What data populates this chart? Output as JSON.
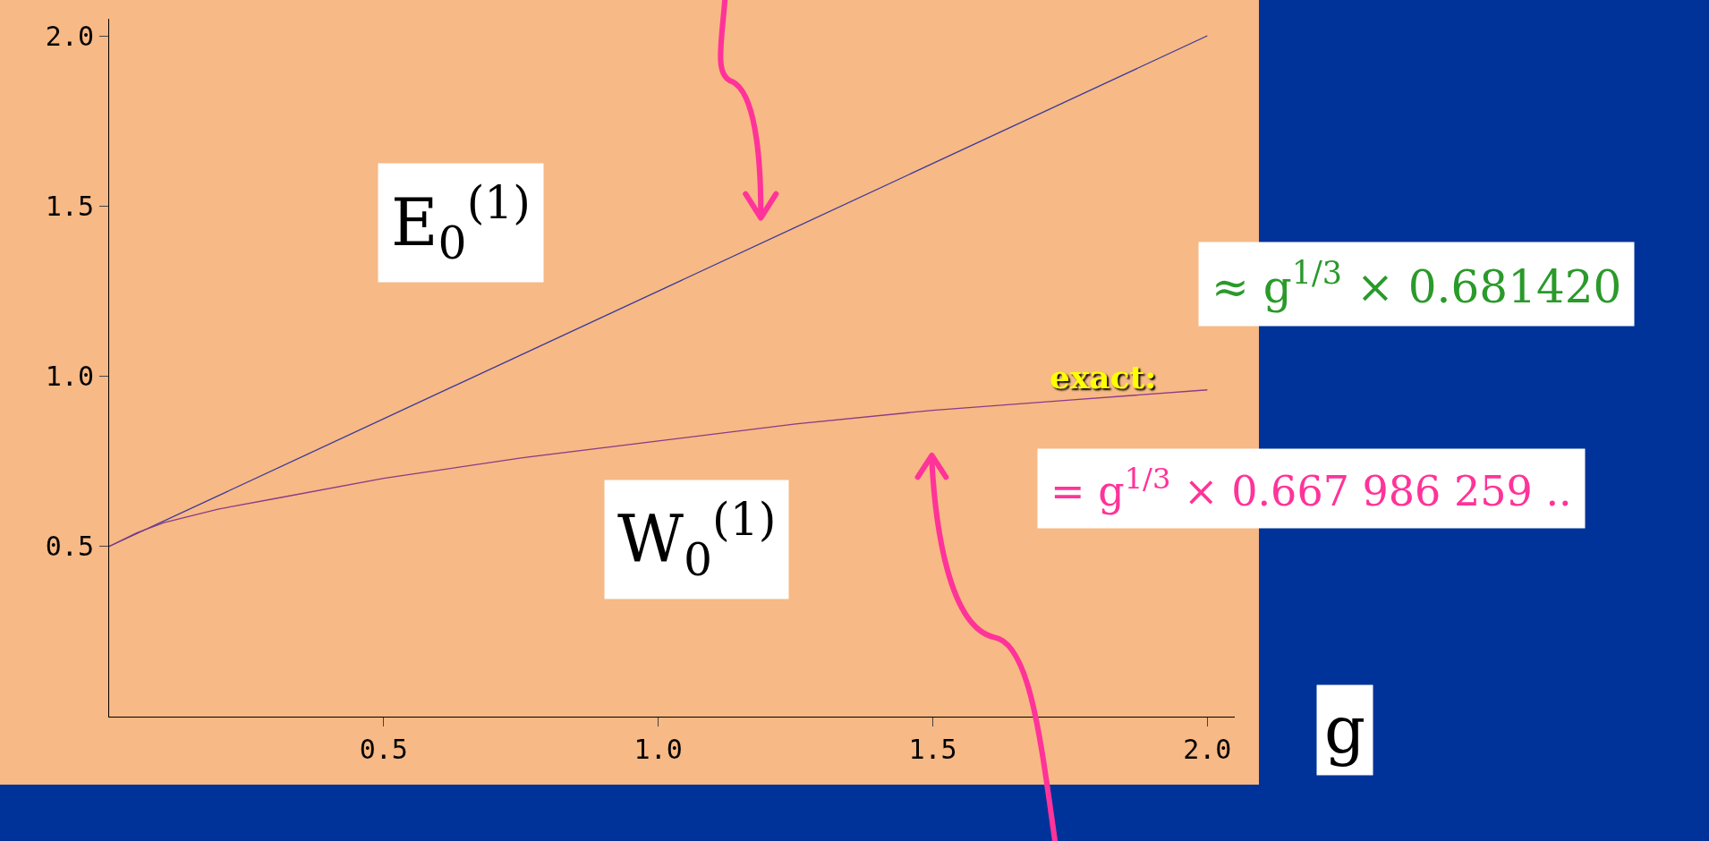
{
  "chart_data": {
    "type": "line",
    "xlabel": "g",
    "grid": false,
    "marker": "none",
    "line_style": "solid",
    "xlim": [
      0,
      2.05
    ],
    "ylim": [
      0,
      2.05
    ],
    "xticks": [
      {
        "value": 0.5,
        "label": "0.5"
      },
      {
        "value": 1,
        "label": "1.0"
      },
      {
        "value": 1.5,
        "label": "1.5"
      },
      {
        "value": 2,
        "label": "2.0"
      }
    ],
    "yticks": [
      {
        "value": 0.5,
        "label": "0.5"
      },
      {
        "value": 1,
        "label": "1.0"
      },
      {
        "value": 1.5,
        "label": "1.5"
      },
      {
        "value": 2,
        "label": "2.0"
      }
    ],
    "series": [
      {
        "color": "#3a3a9a",
        "x": [
          0,
          2
        ],
        "values": [
          0.5,
          2.0
        ]
      },
      {
        "color": "#8a3a8a",
        "x": [
          0,
          0.05,
          0.1,
          0.2,
          0.3,
          0.5,
          0.75,
          1,
          1.25,
          1.5,
          1.75,
          2
        ],
        "values": [
          0.5,
          0.54,
          0.57,
          0.61,
          0.64,
          0.7,
          0.76,
          0.81,
          0.86,
          0.9,
          0.93,
          0.96
        ]
      }
    ],
    "annotations": [
      "E$_{0}$$^{(1)}$",
      "W$_{0}$$^{(1)}$",
      "≈ g$^{1/3}$ × 0.681420",
      "exact:",
      "= g$^{1/3}$ × 0.667 986 259 .."
    ]
  }
}
